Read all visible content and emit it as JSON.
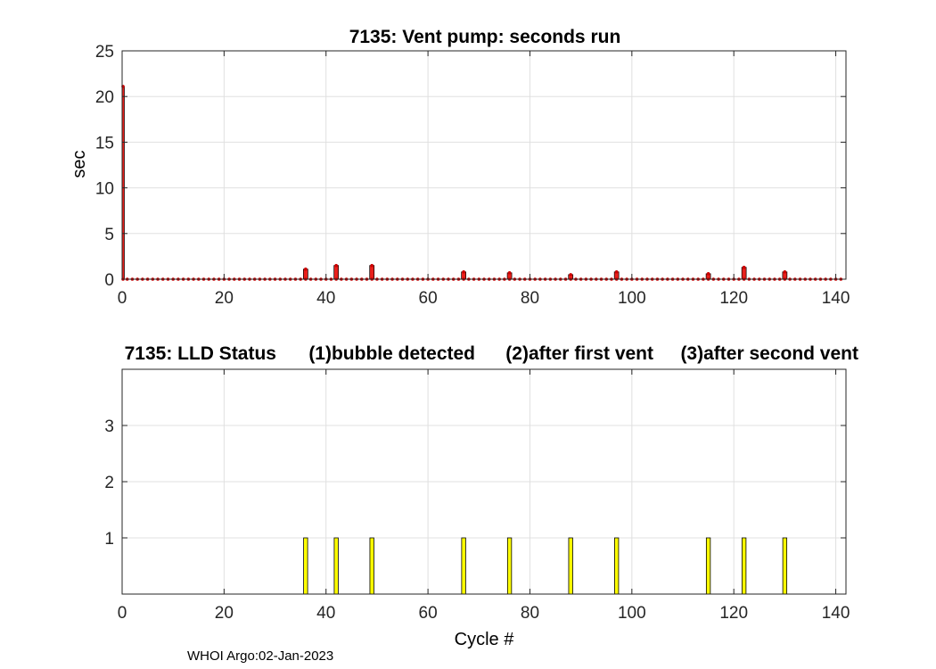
{
  "footer": "WHOI Argo:02-Jan-2023",
  "colors": {
    "bar_red": "#e8201c",
    "marker_red": "#cc0000",
    "bar_yellow": "#ffff00",
    "grid": "#e0e0e0"
  },
  "chart_data": [
    {
      "type": "bar",
      "title": "7135: Vent pump: seconds run",
      "xlabel": "",
      "ylabel": "sec",
      "xlim": [
        0,
        142
      ],
      "ylim": [
        0,
        25
      ],
      "xticks": [
        0,
        20,
        40,
        60,
        80,
        100,
        120,
        140
      ],
      "yticks": [
        0,
        5,
        10,
        15,
        20,
        25
      ],
      "grid": true,
      "markers": "zero-valued cycles 0-141 drawn as red dots along the baseline",
      "x": [
        0,
        36,
        42,
        49,
        67,
        76,
        88,
        97,
        115,
        122,
        130
      ],
      "values": [
        21.1,
        1.1,
        1.5,
        1.5,
        0.8,
        0.7,
        0.5,
        0.8,
        0.6,
        1.3,
        0.8
      ]
    },
    {
      "type": "bar",
      "title_parts": [
        "7135: LLD Status",
        "(1)bubble detected",
        "(2)after first vent",
        "(3)after second vent"
      ],
      "xlabel": "Cycle #",
      "ylabel": "",
      "xlim": [
        0,
        142
      ],
      "ylim": [
        0,
        4
      ],
      "xticks": [
        0,
        20,
        40,
        60,
        80,
        100,
        120,
        140
      ],
      "yticks": [
        1,
        2,
        3
      ],
      "grid": true,
      "x": [
        36,
        42,
        49,
        67,
        76,
        88,
        97,
        115,
        122,
        130
      ],
      "values": [
        1,
        1,
        1,
        1,
        1,
        1,
        1,
        1,
        1,
        1
      ]
    }
  ]
}
